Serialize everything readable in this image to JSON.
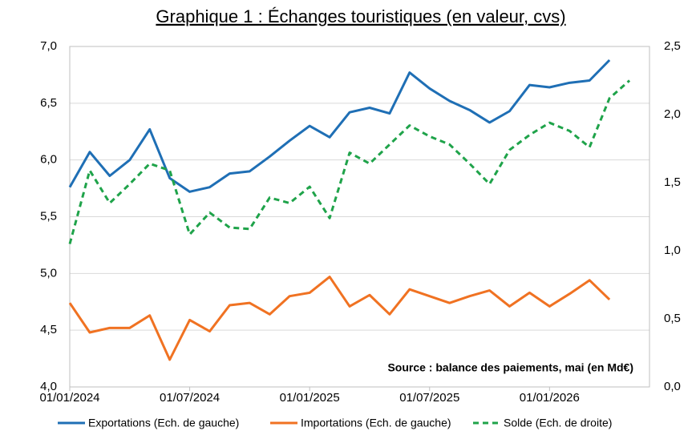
{
  "chart_data": {
    "type": "line",
    "title": "Graphique 1 : Échanges touristiques (en valeur, cvs)",
    "annotation": "Source : balance des paiements, mai (en Md€)",
    "categories": [
      "01/01/2024",
      null,
      null,
      null,
      null,
      null,
      "01/07/2024",
      null,
      null,
      null,
      null,
      null,
      "01/01/2025",
      null,
      null,
      null,
      null,
      null,
      "01/07/2025",
      null,
      null,
      null,
      null,
      null,
      "01/01/2026",
      null,
      null,
      null,
      null
    ],
    "series": [
      {
        "name": "Exportations (Ech. de gauche)",
        "color": "#1f6fb5",
        "dash": "solid",
        "axis": "y",
        "values": [
          5.76,
          6.07,
          5.86,
          6.0,
          6.27,
          5.84,
          5.72,
          5.76,
          5.88,
          5.9,
          6.03,
          6.17,
          6.3,
          6.2,
          6.42,
          6.46,
          6.41,
          6.77,
          6.63,
          6.52,
          6.44,
          6.33,
          6.43,
          6.66,
          6.64,
          6.68,
          6.7,
          6.88,
          null
        ]
      },
      {
        "name": "Importations (Ech. de gauche)",
        "color": "#f07222",
        "dash": "solid",
        "axis": "y",
        "values": [
          4.74,
          4.48,
          4.52,
          4.52,
          4.63,
          4.24,
          4.59,
          4.49,
          4.72,
          4.74,
          4.64,
          4.8,
          4.83,
          4.97,
          4.71,
          4.81,
          4.64,
          4.86,
          4.8,
          4.74,
          4.8,
          4.85,
          4.71,
          4.83,
          4.71,
          4.82,
          4.94,
          4.77,
          null
        ]
      },
      {
        "name": "Solde (Ech. de droite)",
        "color": "#1fa34a",
        "dash": "dashed",
        "axis": "y2",
        "values": [
          1.05,
          1.59,
          1.35,
          1.49,
          1.64,
          1.59,
          1.12,
          1.28,
          1.17,
          1.16,
          1.39,
          1.35,
          1.47,
          1.24,
          1.72,
          1.64,
          1.78,
          1.92,
          1.84,
          1.78,
          1.64,
          1.49,
          1.74,
          1.85,
          1.94,
          1.88,
          1.76,
          2.12,
          2.25
        ]
      }
    ],
    "ylim": [
      4.0,
      7.0
    ],
    "yticks": [
      {
        "value": 4.0,
        "label": "4,0"
      },
      {
        "value": 4.5,
        "label": "4,5"
      },
      {
        "value": 5.0,
        "label": "5,0"
      },
      {
        "value": 5.5,
        "label": "5,5"
      },
      {
        "value": 6.0,
        "label": "6,0"
      },
      {
        "value": 6.5,
        "label": "6,5"
      },
      {
        "value": 7.0,
        "label": "7,0"
      }
    ],
    "y2lim": [
      0,
      2.5
    ],
    "y2ticks": [
      {
        "value": 0,
        "label": "0,0"
      },
      {
        "value": 0.5,
        "label": "0,5"
      },
      {
        "value": 1.0,
        "label": "1,0"
      },
      {
        "value": 1.5,
        "label": "1,5"
      },
      {
        "value": 2.0,
        "label": "2,0"
      },
      {
        "value": 2.5,
        "label": "2,5"
      }
    ],
    "grid": true,
    "legend": "bottom"
  }
}
